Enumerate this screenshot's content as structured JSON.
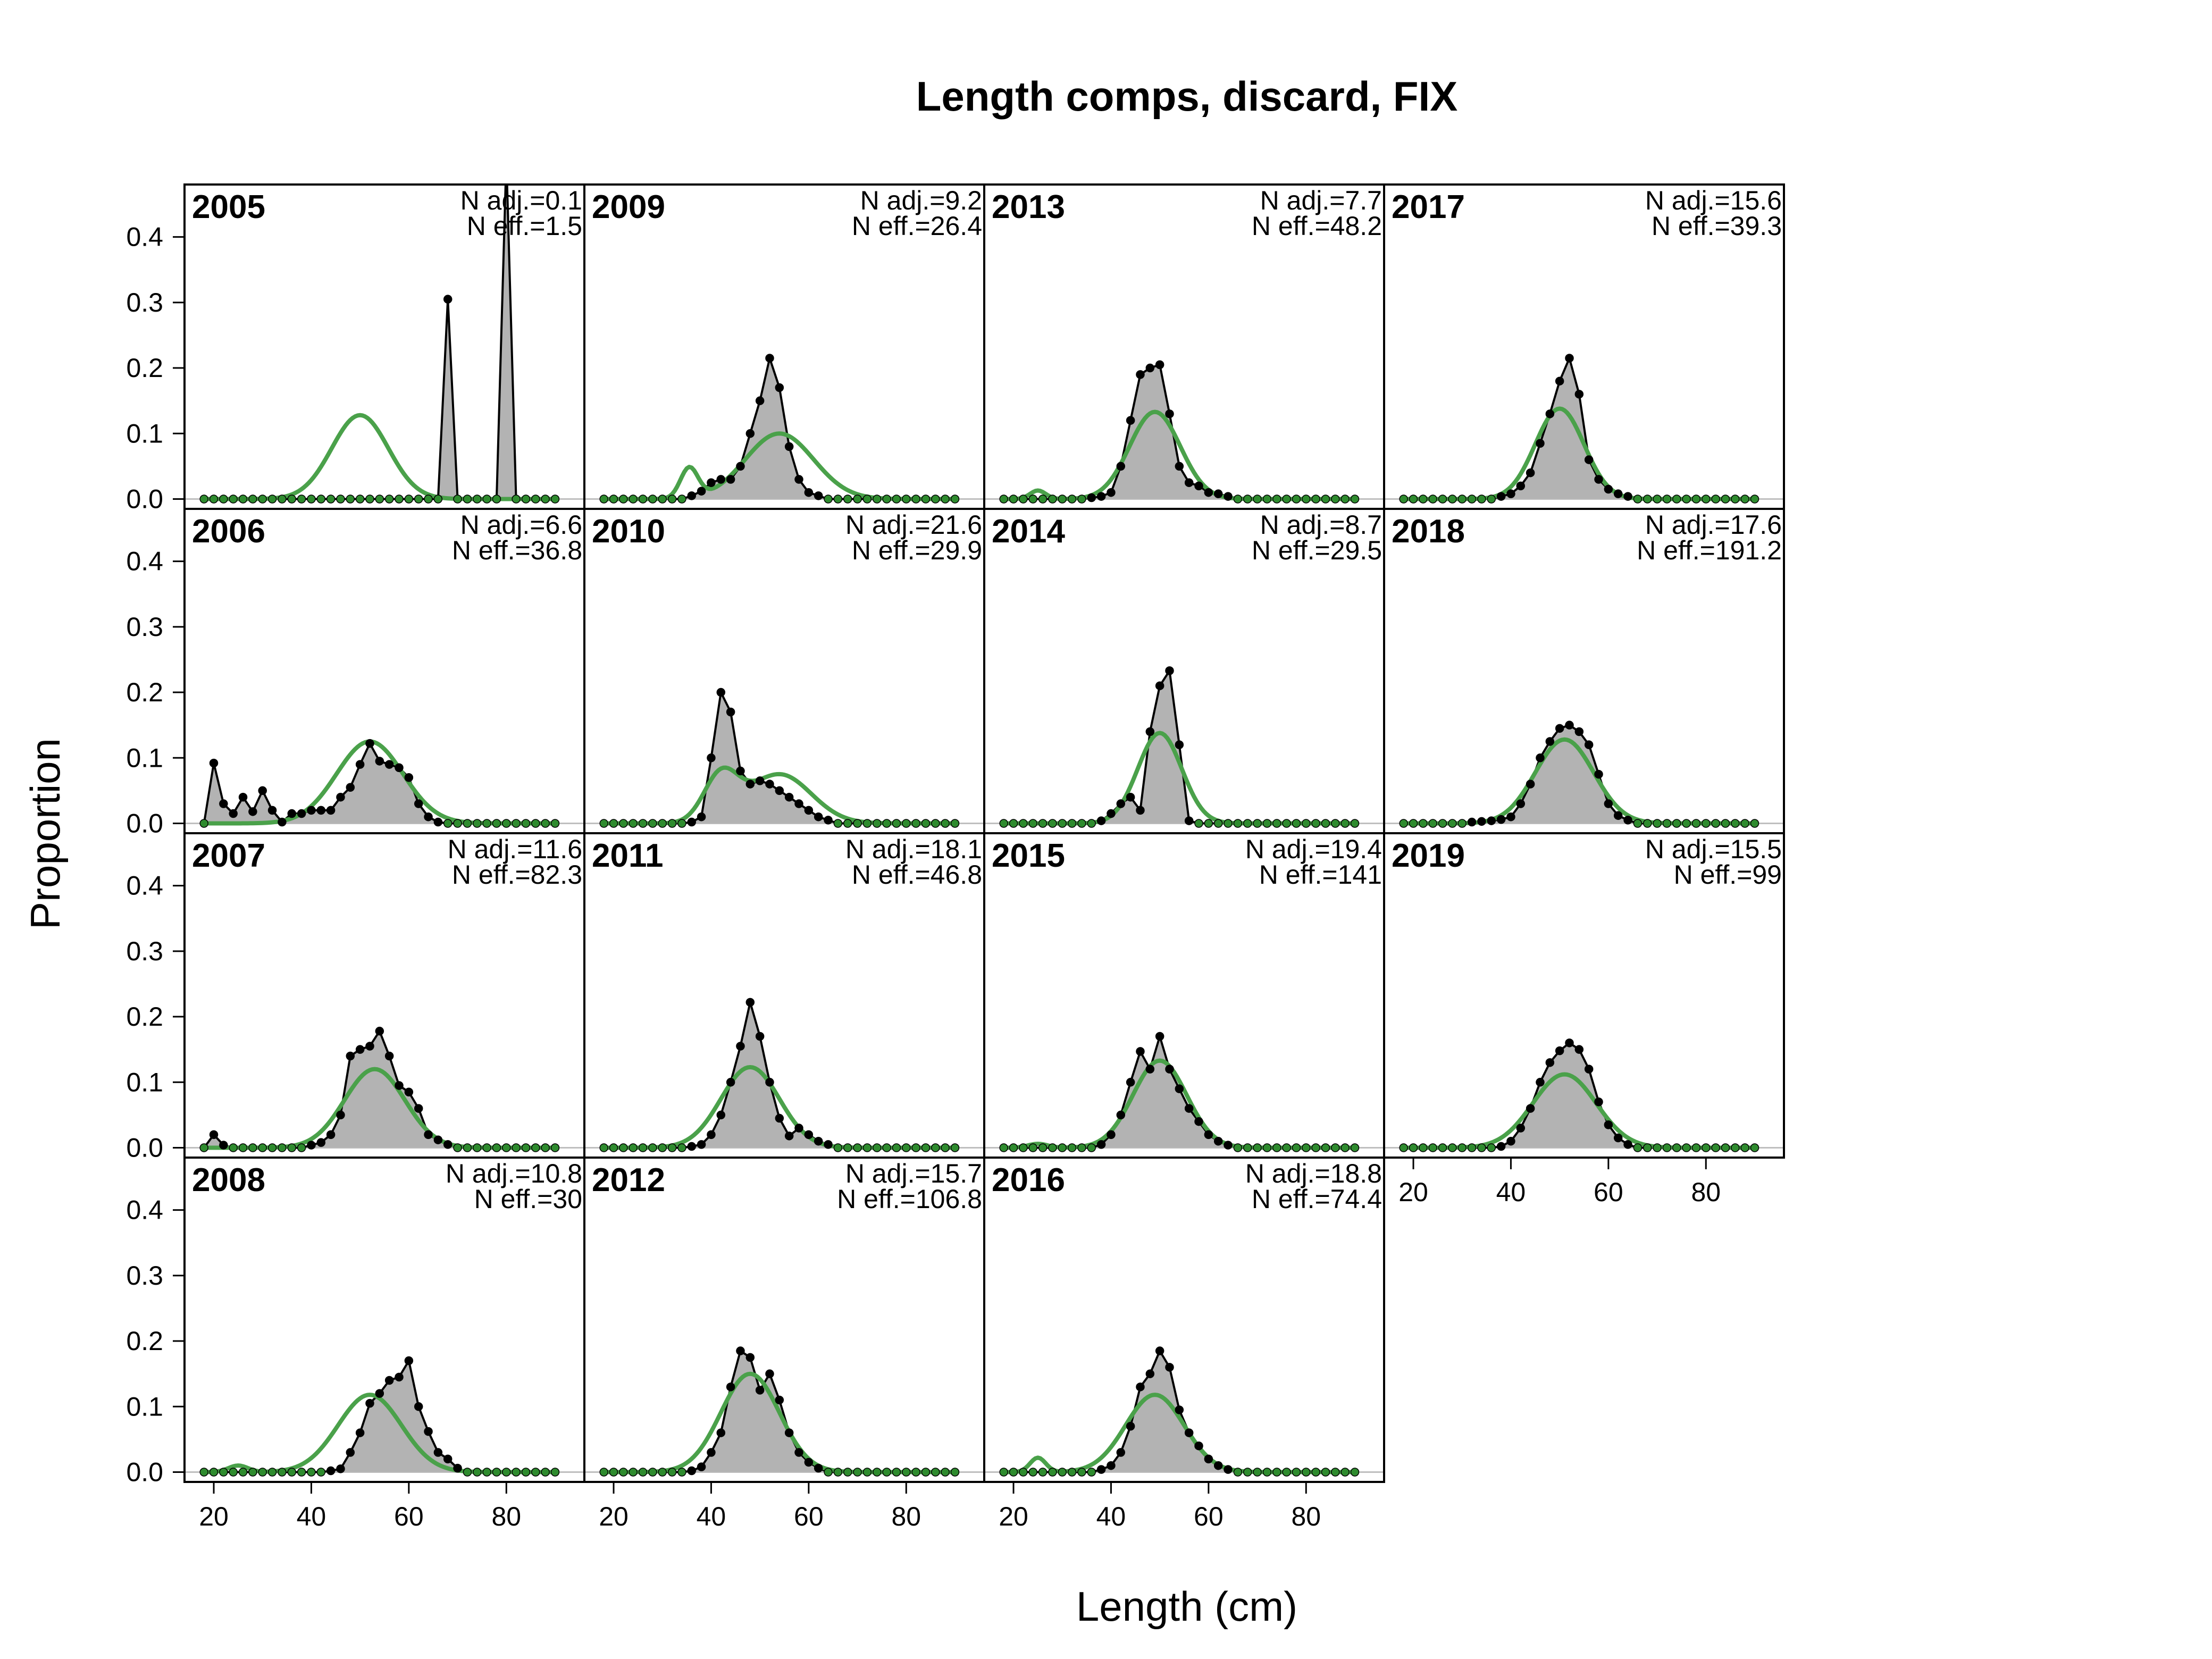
{
  "chart_data": {
    "type": "area",
    "title": "Length comps, discard, FIX",
    "xlabel": "Length (cm)",
    "ylabel": "Proportion",
    "xlim": [
      14,
      96
    ],
    "ylim": [
      -0.015,
      0.48
    ],
    "x_ticks": [
      20,
      40,
      60,
      80
    ],
    "y_ticks": [
      0.0,
      0.1,
      0.2,
      0.3,
      0.4
    ],
    "y_tick_labels": [
      "0.0",
      "0.1",
      "0.2",
      "0.3",
      "0.4"
    ],
    "bins": [
      18,
      20,
      22,
      24,
      26,
      28,
      30,
      32,
      34,
      36,
      38,
      40,
      42,
      44,
      46,
      48,
      50,
      52,
      54,
      56,
      58,
      60,
      62,
      64,
      66,
      68,
      70,
      72,
      74,
      76,
      78,
      80,
      82,
      84,
      86,
      88,
      90
    ],
    "colors": {
      "observed_fill": "#b3b3b3",
      "observed_line": "#000000",
      "expected_line": "#4aa14a",
      "zero_line": "#bfbfbf"
    },
    "panels": [
      {
        "year": "2005",
        "n_adj": "N adj.=0.1",
        "n_eff": "N eff.=1.5",
        "obs": {
          "68": 0.305,
          "80": 0.52
        },
        "exp": {
          "mean": 50,
          "sd": 5.8,
          "peak": 0.128
        }
      },
      {
        "year": "2006",
        "n_adj": "N adj.=6.6",
        "n_eff": "N eff.=36.8",
        "obs": {
          "18": 0.0,
          "20": 0.092,
          "22": 0.03,
          "24": 0.015,
          "26": 0.04,
          "28": 0.018,
          "30": 0.05,
          "32": 0.02,
          "34": 0.002,
          "36": 0.015,
          "38": 0.015,
          "40": 0.02,
          "42": 0.02,
          "44": 0.02,
          "46": 0.04,
          "48": 0.055,
          "50": 0.09,
          "52": 0.122,
          "54": 0.095,
          "56": 0.09,
          "58": 0.085,
          "60": 0.07,
          "62": 0.03,
          "64": 0.01,
          "66": 0.002
        },
        "exp": {
          "mean": 52,
          "sd": 6.8,
          "peak": 0.125
        }
      },
      {
        "year": "2007",
        "n_adj": "N adj.=11.6",
        "n_eff": "N eff.=82.3",
        "obs": {
          "20": 0.02,
          "22": 0.004,
          "40": 0.004,
          "42": 0.008,
          "44": 0.02,
          "46": 0.05,
          "48": 0.14,
          "50": 0.15,
          "52": 0.155,
          "54": 0.178,
          "56": 0.14,
          "58": 0.095,
          "60": 0.085,
          "62": 0.06,
          "64": 0.02,
          "66": 0.012,
          "68": 0.005
        },
        "exp": {
          "mean": 53,
          "sd": 6.2,
          "peak": 0.12
        }
      },
      {
        "year": "2008",
        "n_adj": "N adj.=10.8",
        "n_eff": "N eff.=30",
        "obs": {
          "44": 0.002,
          "46": 0.005,
          "48": 0.03,
          "50": 0.06,
          "52": 0.105,
          "54": 0.12,
          "56": 0.14,
          "58": 0.145,
          "60": 0.17,
          "62": 0.1,
          "64": 0.062,
          "66": 0.03,
          "68": 0.02,
          "70": 0.006
        },
        "exp": {
          "mean": 52,
          "sd": 6.5,
          "peak": 0.118,
          "mean2": 25,
          "sd2": 2,
          "peak2": 0.01
        }
      },
      {
        "year": "2009",
        "n_adj": "N adj.=9.2",
        "n_eff": "N eff.=26.4",
        "obs": {
          "36": 0.005,
          "38": 0.012,
          "40": 0.025,
          "42": 0.03,
          "44": 0.03,
          "46": 0.05,
          "48": 0.1,
          "50": 0.15,
          "52": 0.215,
          "54": 0.17,
          "56": 0.08,
          "58": 0.03,
          "60": 0.01,
          "62": 0.005
        },
        "exp": {
          "mean": 54,
          "sd": 7.0,
          "peak": 0.1,
          "mean2": 35.5,
          "sd2": 1.8,
          "peak2": 0.046
        }
      },
      {
        "year": "2010",
        "n_adj": "N adj.=21.6",
        "n_eff": "N eff.=29.9",
        "obs": {
          "36": 0.002,
          "38": 0.01,
          "40": 0.1,
          "42": 0.2,
          "44": 0.17,
          "46": 0.08,
          "48": 0.06,
          "50": 0.065,
          "52": 0.06,
          "54": 0.05,
          "56": 0.04,
          "58": 0.03,
          "60": 0.02,
          "62": 0.01,
          "64": 0.005
        },
        "exp": {
          "mean": 54,
          "sd": 6.5,
          "peak": 0.075,
          "mean2": 42,
          "sd2": 3.5,
          "peak2": 0.07
        }
      },
      {
        "year": "2011",
        "n_adj": "N adj.=18.1",
        "n_eff": "N eff.=46.8",
        "obs": {
          "36": 0.002,
          "38": 0.005,
          "40": 0.02,
          "42": 0.05,
          "44": 0.1,
          "46": 0.155,
          "48": 0.222,
          "50": 0.17,
          "52": 0.1,
          "54": 0.045,
          "56": 0.018,
          "58": 0.03,
          "60": 0.02,
          "62": 0.01,
          "64": 0.005
        },
        "exp": {
          "mean": 48,
          "sd": 6.0,
          "peak": 0.123
        }
      },
      {
        "year": "2012",
        "n_adj": "N adj.=15.7",
        "n_eff": "N eff.=106.8",
        "obs": {
          "36": 0.002,
          "38": 0.008,
          "40": 0.03,
          "42": 0.06,
          "44": 0.13,
          "46": 0.185,
          "48": 0.175,
          "50": 0.125,
          "52": 0.15,
          "54": 0.11,
          "56": 0.06,
          "58": 0.03,
          "60": 0.015,
          "62": 0.006
        },
        "exp": {
          "mean": 48,
          "sd": 6.0,
          "peak": 0.15
        }
      },
      {
        "year": "2013",
        "n_adj": "N adj.=7.7",
        "n_eff": "N eff.=48.2",
        "obs": {
          "36": 0.002,
          "38": 0.004,
          "40": 0.01,
          "42": 0.05,
          "44": 0.12,
          "46": 0.19,
          "48": 0.2,
          "50": 0.205,
          "52": 0.13,
          "54": 0.05,
          "56": 0.025,
          "58": 0.02,
          "60": 0.01,
          "62": 0.008,
          "64": 0.004
        },
        "exp": {
          "mean": 49,
          "sd": 5.2,
          "peak": 0.133,
          "mean2": 25,
          "sd2": 1.6,
          "peak2": 0.013
        }
      },
      {
        "year": "2014",
        "n_adj": "N adj.=8.7",
        "n_eff": "N eff.=29.5",
        "obs": {
          "38": 0.004,
          "40": 0.015,
          "42": 0.03,
          "44": 0.04,
          "46": 0.02,
          "48": 0.14,
          "50": 0.21,
          "52": 0.233,
          "54": 0.12,
          "56": 0.004
        },
        "exp": {
          "mean": 50,
          "sd": 4.5,
          "peak": 0.138
        }
      },
      {
        "year": "2015",
        "n_adj": "N adj.=19.4",
        "n_eff": "N eff.=141",
        "obs": {
          "38": 0.005,
          "40": 0.02,
          "42": 0.05,
          "44": 0.1,
          "46": 0.147,
          "48": 0.12,
          "50": 0.17,
          "52": 0.12,
          "54": 0.09,
          "56": 0.06,
          "58": 0.04,
          "60": 0.02,
          "62": 0.01,
          "64": 0.004
        },
        "exp": {
          "mean": 50,
          "sd": 5.5,
          "peak": 0.133,
          "mean2": 25,
          "sd2": 2,
          "peak2": 0.006
        }
      },
      {
        "year": "2016",
        "n_adj": "N adj.=18.8",
        "n_eff": "N eff.=74.4",
        "obs": {
          "38": 0.004,
          "40": 0.01,
          "42": 0.03,
          "44": 0.07,
          "46": 0.13,
          "48": 0.15,
          "50": 0.185,
          "52": 0.16,
          "54": 0.095,
          "56": 0.06,
          "58": 0.04,
          "60": 0.02,
          "62": 0.01,
          "64": 0.004
        },
        "exp": {
          "mean": 49,
          "sd": 6.0,
          "peak": 0.118,
          "mean2": 25,
          "sd2": 1.6,
          "peak2": 0.022
        }
      },
      {
        "year": "2017",
        "n_adj": "N adj.=15.6",
        "n_eff": "N eff.=39.3",
        "obs": {
          "38": 0.004,
          "40": 0.008,
          "42": 0.02,
          "44": 0.04,
          "46": 0.085,
          "48": 0.13,
          "50": 0.18,
          "52": 0.215,
          "54": 0.16,
          "56": 0.06,
          "58": 0.03,
          "60": 0.015,
          "62": 0.008,
          "64": 0.004
        },
        "exp": {
          "mean": 50,
          "sd": 5.0,
          "peak": 0.138
        }
      },
      {
        "year": "2018",
        "n_adj": "N adj.=17.6",
        "n_eff": "N eff.=191.2",
        "obs": {
          "32": 0.002,
          "34": 0.003,
          "36": 0.004,
          "38": 0.006,
          "40": 0.01,
          "42": 0.03,
          "44": 0.06,
          "46": 0.1,
          "48": 0.125,
          "50": 0.145,
          "52": 0.15,
          "54": 0.14,
          "56": 0.12,
          "58": 0.075,
          "60": 0.03,
          "62": 0.012,
          "64": 0.005
        },
        "exp": {
          "mean": 51,
          "sd": 6.0,
          "peak": 0.128
        }
      },
      {
        "year": "2019",
        "n_adj": "N adj.=15.5",
        "n_eff": "N eff.=99",
        "obs": {
          "38": 0.002,
          "40": 0.01,
          "42": 0.03,
          "44": 0.06,
          "46": 0.1,
          "48": 0.13,
          "50": 0.148,
          "52": 0.16,
          "54": 0.15,
          "56": 0.12,
          "58": 0.07,
          "60": 0.035,
          "62": 0.015,
          "64": 0.005
        },
        "exp": {
          "mean": 51,
          "sd": 6.5,
          "peak": 0.112
        }
      }
    ]
  }
}
